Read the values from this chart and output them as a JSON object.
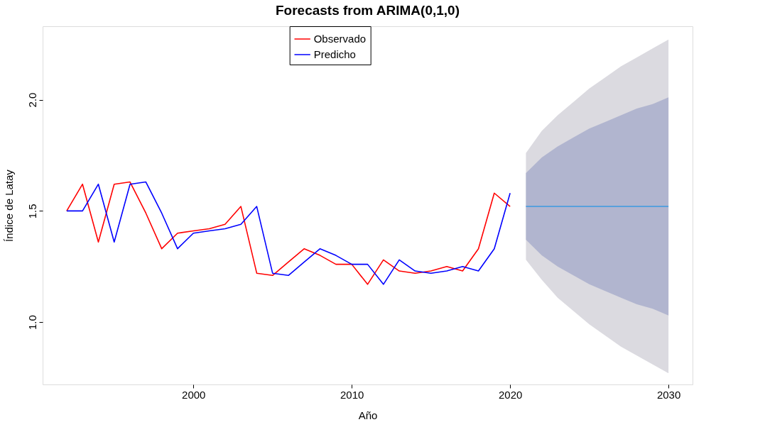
{
  "chart_data": {
    "type": "line",
    "title": "Forecasts from ARIMA(0,1,0)",
    "xlabel": "Año",
    "ylabel": "Índice de Latay",
    "xlim": [
      1990.48,
      2031.52
    ],
    "xticks": [
      2000,
      2010,
      2020,
      2030
    ],
    "ylim": [
      0.72,
      2.33
    ],
    "yticks": [
      {
        "value": 1.0,
        "label": "1.0"
      },
      {
        "value": 1.5,
        "label": "1.5"
      },
      {
        "value": 2.0,
        "label": "2.0"
      }
    ],
    "grid": false,
    "legend": "top",
    "marker": "none",
    "line_style": "solid",
    "series": [
      {
        "name": "Observado",
        "color": "#ff0000",
        "x": [
          1992,
          1993,
          1994,
          1995,
          1996,
          1997,
          1998,
          1999,
          2000,
          2001,
          2002,
          2003,
          2004,
          2005,
          2006,
          2007,
          2008,
          2009,
          2010,
          2011,
          2012,
          2013,
          2014,
          2015,
          2016,
          2017,
          2018,
          2019,
          2020
        ],
        "values": [
          1.5,
          1.62,
          1.36,
          1.62,
          1.63,
          1.49,
          1.33,
          1.4,
          1.41,
          1.42,
          1.44,
          1.52,
          1.22,
          1.21,
          1.27,
          1.33,
          1.3,
          1.26,
          1.26,
          1.17,
          1.28,
          1.23,
          1.22,
          1.23,
          1.25,
          1.23,
          1.33,
          1.58,
          1.52
        ]
      },
      {
        "name": "Predicho",
        "color": "#0000ff",
        "x": [
          1992,
          1993,
          1994,
          1995,
          1996,
          1997,
          1998,
          1999,
          2000,
          2001,
          2002,
          2003,
          2004,
          2005,
          2006,
          2007,
          2008,
          2009,
          2010,
          2011,
          2012,
          2013,
          2014,
          2015,
          2016,
          2017,
          2018,
          2019,
          2020
        ],
        "values": [
          1.5,
          1.5,
          1.62,
          1.36,
          1.62,
          1.63,
          1.49,
          1.33,
          1.4,
          1.41,
          1.42,
          1.44,
          1.52,
          1.22,
          1.21,
          1.27,
          1.33,
          1.3,
          1.26,
          1.26,
          1.17,
          1.28,
          1.23,
          1.22,
          1.23,
          1.25,
          1.23,
          1.33,
          1.58
        ]
      },
      {
        "type": "line",
        "color": "#3b9ae1",
        "x": [
          2021,
          2022,
          2023,
          2024,
          2025,
          2026,
          2027,
          2028,
          2029,
          2030
        ],
        "values": [
          1.52,
          1.52,
          1.52,
          1.52,
          1.52,
          1.52,
          1.52,
          1.52,
          1.52,
          1.52
        ],
        "lower": [
          1.28,
          1.19,
          1.11,
          1.05,
          0.99,
          0.94,
          0.89,
          0.85,
          0.81,
          0.77
        ],
        "upper": [
          1.76,
          1.86,
          1.93,
          1.99,
          2.05,
          2.1,
          2.15,
          2.19,
          2.23,
          2.27
        ]
      },
      {
        "type": "line",
        "color": "#3b9ae1",
        "x": [
          2021,
          2022,
          2023,
          2024,
          2025,
          2026,
          2027,
          2028,
          2029,
          2030
        ],
        "values": [
          null,
          null,
          null,
          null,
          null,
          null,
          null,
          null,
          null,
          null
        ],
        "lower": [
          1.37,
          1.3,
          1.25,
          1.21,
          1.17,
          1.14,
          1.11,
          1.08,
          1.06,
          1.03
        ],
        "upper": [
          1.67,
          1.74,
          1.79,
          1.83,
          1.87,
          1.9,
          1.93,
          1.96,
          1.98,
          2.01
        ]
      }
    ]
  }
}
